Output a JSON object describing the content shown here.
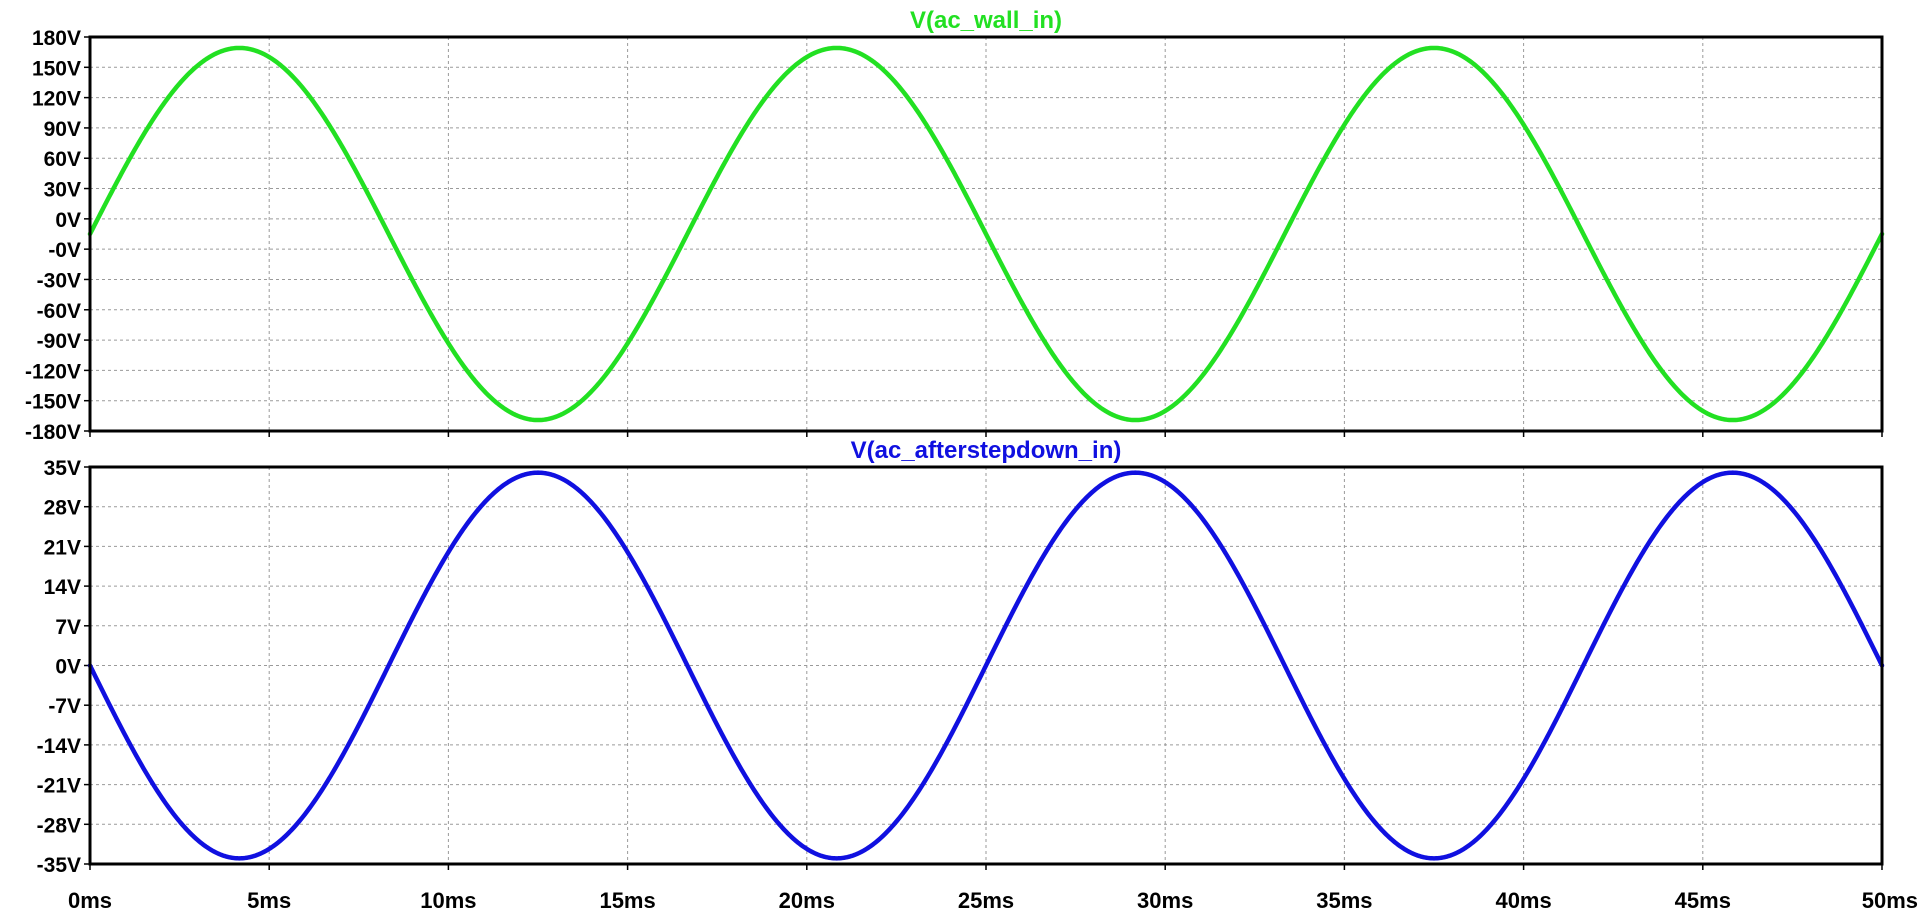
{
  "chart_data": [
    {
      "type": "line",
      "title": "V(ac_wall_in)",
      "xlabel": "",
      "ylabel": "",
      "color": "#22e022",
      "xlim": [
        0,
        50
      ],
      "ylim": [
        -180,
        180
      ],
      "x_unit": "ms",
      "y_unit": "V",
      "grid": true,
      "x_ticks": [
        "0ms",
        "5ms",
        "10ms",
        "15ms",
        "20ms",
        "25ms",
        "30ms",
        "35ms",
        "40ms",
        "45ms",
        "50ms"
      ],
      "y_ticks": [
        "180V",
        "150V",
        "120V",
        "90V",
        "60V",
        "30V",
        "0V",
        "-0V",
        "-30V",
        "-60V",
        "-90V",
        "-120V",
        "-150V",
        "-180V"
      ],
      "series": [
        {
          "name": "V(ac_wall_in)",
          "waveform": "sine",
          "amplitude": 170,
          "frequency_hz": 60,
          "phase_deg": 0,
          "x": [
            0,
            4.17,
            8.33,
            12.5,
            16.67,
            20.83,
            25.0,
            29.17,
            33.33,
            37.5,
            41.67,
            45.83,
            50.0
          ],
          "values": [
            0,
            170,
            0,
            -170,
            0,
            170,
            0,
            -170,
            0,
            170,
            0,
            -170,
            0
          ]
        }
      ]
    },
    {
      "type": "line",
      "title": "V(ac_afterstepdown_in)",
      "xlabel": "",
      "ylabel": "",
      "color": "#1010e0",
      "xlim": [
        0,
        50
      ],
      "ylim": [
        -35,
        35
      ],
      "x_unit": "ms",
      "y_unit": "V",
      "grid": true,
      "x_ticks": [
        "0ms",
        "5ms",
        "10ms",
        "15ms",
        "20ms",
        "25ms",
        "30ms",
        "35ms",
        "40ms",
        "45ms",
        "50ms"
      ],
      "y_ticks": [
        "35V",
        "28V",
        "21V",
        "14V",
        "7V",
        "0V",
        "-7V",
        "-14V",
        "-21V",
        "-28V",
        "-35V"
      ],
      "series": [
        {
          "name": "V(ac_afterstepdown_in)",
          "waveform": "sine",
          "amplitude": 34,
          "frequency_hz": 60,
          "phase_deg": 180,
          "x": [
            0,
            4.17,
            8.33,
            12.5,
            16.67,
            20.83,
            25.0,
            29.17,
            33.33,
            37.5,
            41.67,
            45.83,
            50.0
          ],
          "values": [
            0,
            -34,
            0,
            34,
            0,
            -34,
            0,
            34,
            0,
            -34,
            0,
            34,
            0
          ]
        }
      ]
    }
  ]
}
